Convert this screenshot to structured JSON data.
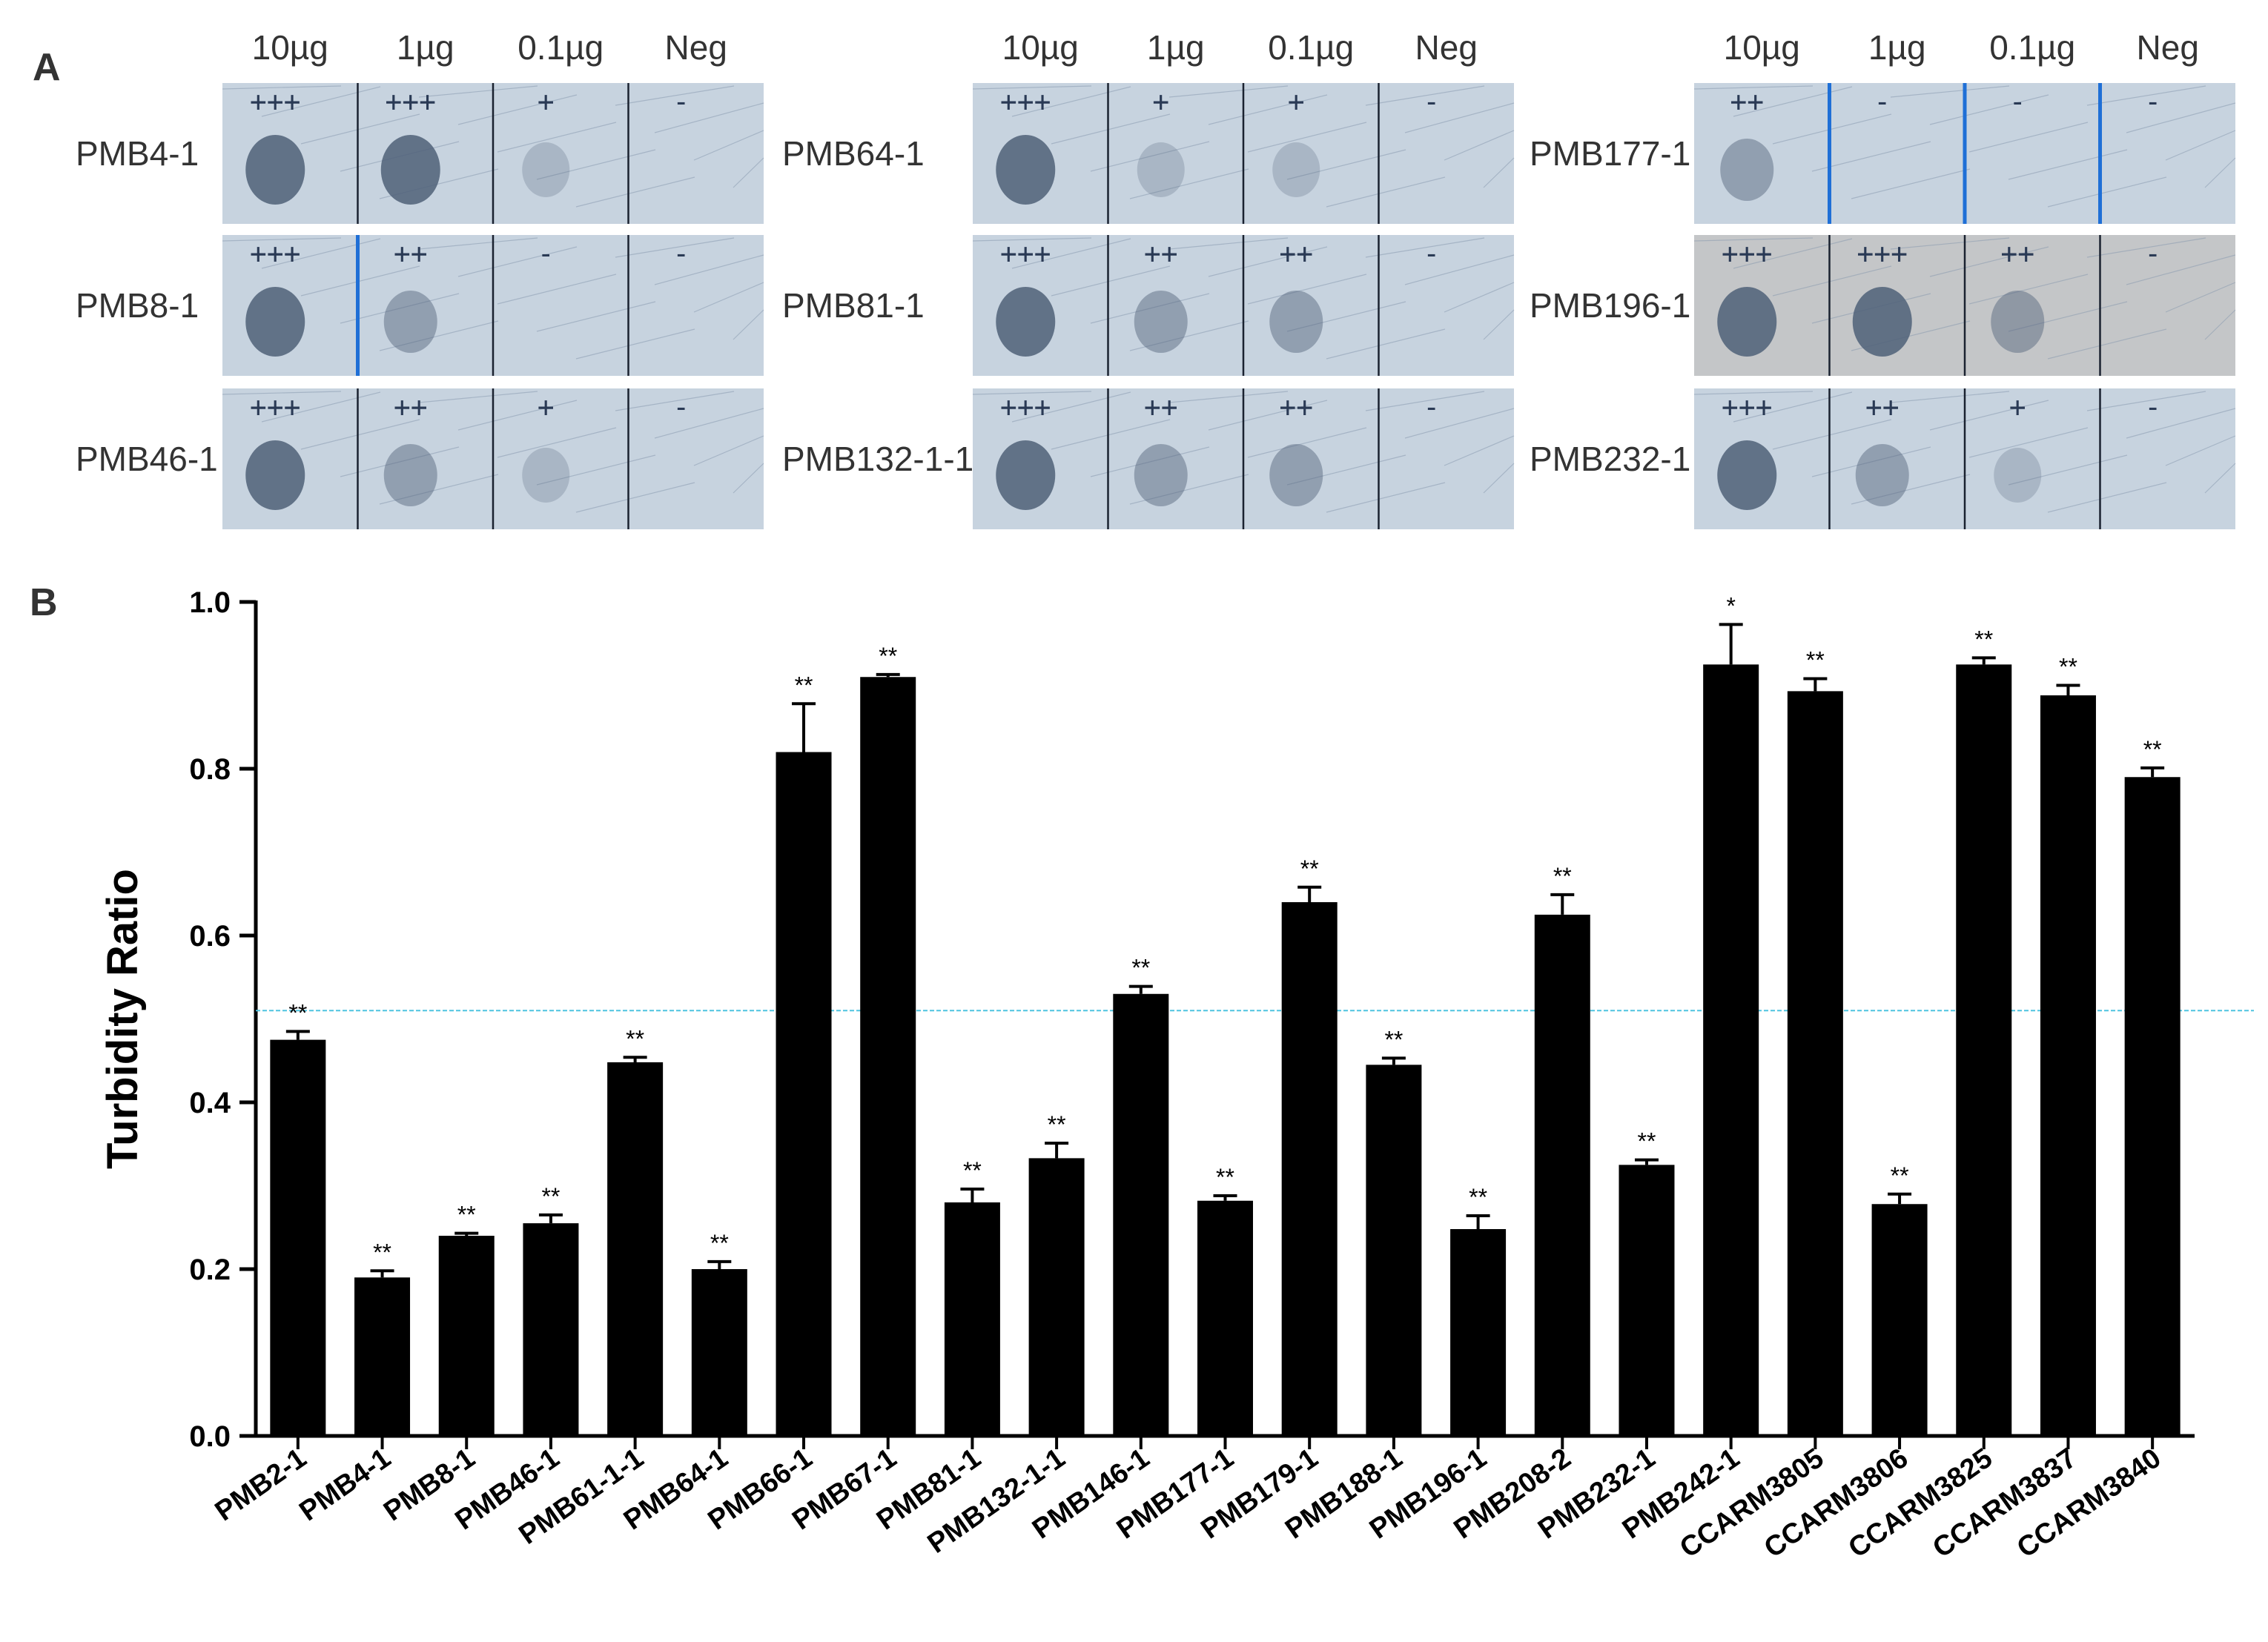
{
  "panel_a": {
    "letter": "A",
    "groups": [
      {
        "concentrations": [
          "10µg",
          "1µg",
          "0.1µg",
          "Neg"
        ],
        "divider_color": "#1a2230",
        "rows": [
          {
            "label": "PMB4-1",
            "scores": [
              "+++",
              "+++",
              "+",
              "-"
            ]
          },
          {
            "label": "PMB8-1",
            "scores": [
              "+++",
              "++",
              "-",
              "-"
            ]
          },
          {
            "label": "PMB46-1",
            "scores": [
              "+++",
              "++",
              "+",
              "-"
            ]
          }
        ]
      },
      {
        "concentrations": [
          "10µg",
          "1µg",
          "0.1µg",
          "Neg"
        ],
        "divider_color": "#1a2230",
        "rows": [
          {
            "label": "PMB64-1",
            "scores": [
              "+++",
              "+",
              "+",
              "-"
            ]
          },
          {
            "label": "PMB81-1",
            "scores": [
              "+++",
              "++",
              "++",
              "-"
            ]
          },
          {
            "label": "PMB132-1-1",
            "scores": [
              "+++",
              "++",
              "++",
              "-"
            ]
          }
        ]
      },
      {
        "concentrations": [
          "10µg",
          "1µg",
          "0.1µg",
          "Neg"
        ],
        "divider_color": "#1a2230",
        "rows": [
          {
            "label": "PMB177-1",
            "scores": [
              "++",
              "-",
              "-",
              "-"
            ]
          },
          {
            "label": "PMB196-1",
            "scores": [
              "+++",
              "+++",
              "++",
              "-"
            ]
          },
          {
            "label": "PMB232-1",
            "scores": [
              "+++",
              "++",
              "+",
              "-"
            ]
          }
        ]
      }
    ],
    "plate_color": "#c7d3df",
    "plate_color_gray": "#c4c6c8",
    "spot_color": "#4f6078",
    "blue_marker_color": "#1f6fd6"
  },
  "panel_b": {
    "letter": "B",
    "chart_data": {
      "type": "bar",
      "ylabel": "Turbidity Ratio",
      "xlabel": "",
      "ylim": [
        0,
        1.0
      ],
      "yticks": [
        "0.0",
        "0.2",
        "0.4",
        "0.6",
        "0.8",
        "1.0"
      ],
      "threshold": 0.51,
      "threshold_color": "#4fc3e0",
      "bar_color": "#000000",
      "categories": [
        "PMB2-1",
        "PMB4-1",
        "PMB8-1",
        "PMB46-1",
        "PMB61-1-1",
        "PMB64-1",
        "PMB66-1",
        "PMB67-1",
        "PMB81-1",
        "PMB132-1-1",
        "PMB146-1",
        "PMB177-1",
        "PMB179-1",
        "PMB188-1",
        "PMB196-1",
        "PMB208-2",
        "PMB232-1",
        "PMB242-1",
        "CCARM3805",
        "CCARM3806",
        "CCARM3825",
        "CCARM3837",
        "CCARM3840"
      ],
      "values": [
        0.475,
        0.19,
        0.24,
        0.255,
        0.448,
        0.2,
        0.82,
        0.91,
        0.28,
        0.333,
        0.53,
        0.282,
        0.64,
        0.445,
        0.248,
        0.625,
        0.325,
        0.925,
        0.893,
        0.278,
        0.925,
        0.888,
        0.79
      ],
      "errors": [
        0.01,
        0.008,
        0.003,
        0.01,
        0.006,
        0.009,
        0.058,
        0.003,
        0.016,
        0.018,
        0.009,
        0.006,
        0.018,
        0.008,
        0.016,
        0.024,
        0.006,
        0.048,
        0.015,
        0.012,
        0.008,
        0.012,
        0.011
      ],
      "significance": [
        "**",
        "**",
        "**",
        "**",
        "**",
        "**",
        "**",
        "**",
        "**",
        "**",
        "**",
        "**",
        "**",
        "**",
        "**",
        "**",
        "**",
        "*",
        "**",
        "**",
        "**",
        "**",
        "**"
      ]
    }
  }
}
